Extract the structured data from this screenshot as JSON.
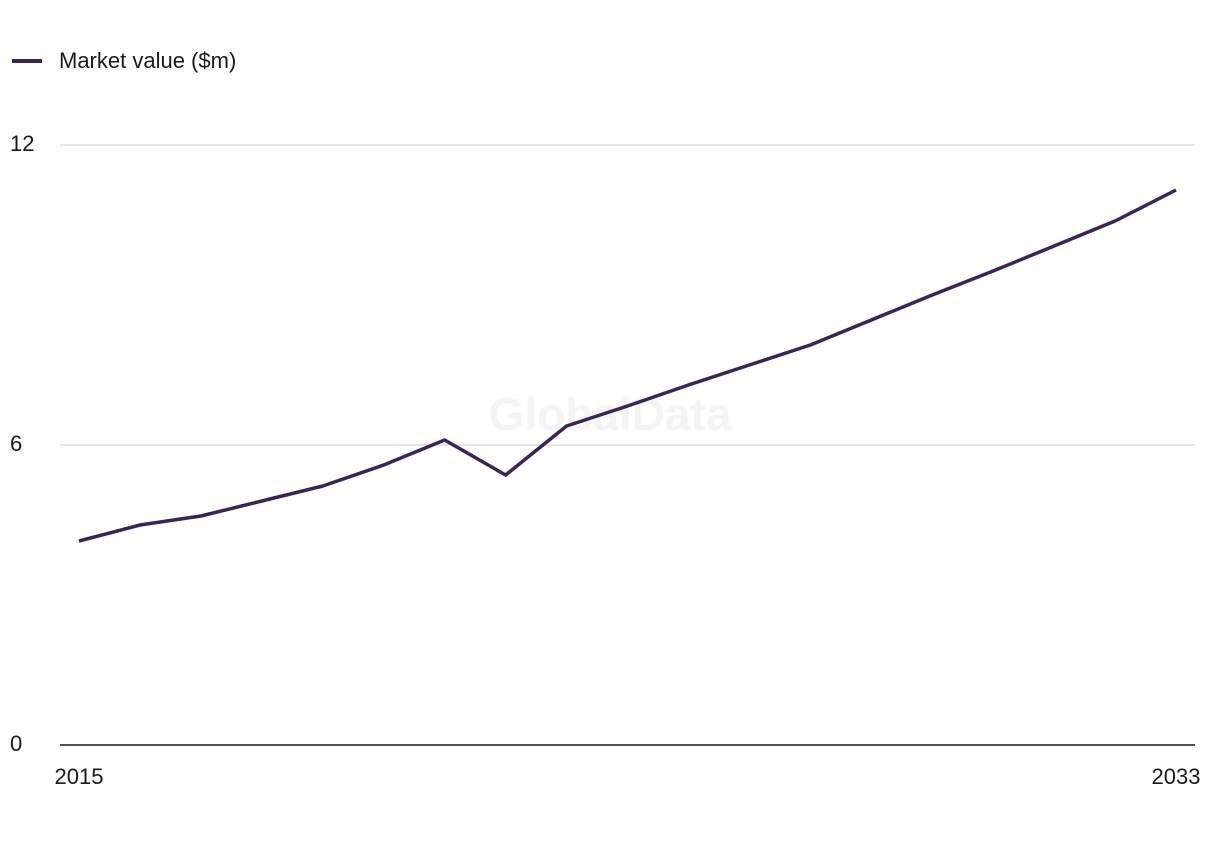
{
  "chart_data": {
    "type": "line",
    "watermark": "GlobalData",
    "categories": [
      "2015",
      null,
      null,
      null,
      null,
      null,
      null,
      null,
      null,
      null,
      null,
      null,
      null,
      null,
      null,
      null,
      null,
      null,
      "2033"
    ],
    "series": [
      {
        "name": "Market value ($m)",
        "color": "#3a2458",
        "values": [
          4.08,
          4.4,
          4.58,
          4.88,
          5.18,
          5.6,
          6.1,
          5.4,
          6.38,
          6.78,
          7.2,
          7.6,
          8.0,
          8.5,
          9.0,
          9.48,
          9.98,
          10.48,
          11.1
        ]
      }
    ],
    "ylim": [
      0,
      12
    ],
    "yticks": [
      0,
      6,
      12
    ],
    "grid": true,
    "legend": "top-left"
  }
}
